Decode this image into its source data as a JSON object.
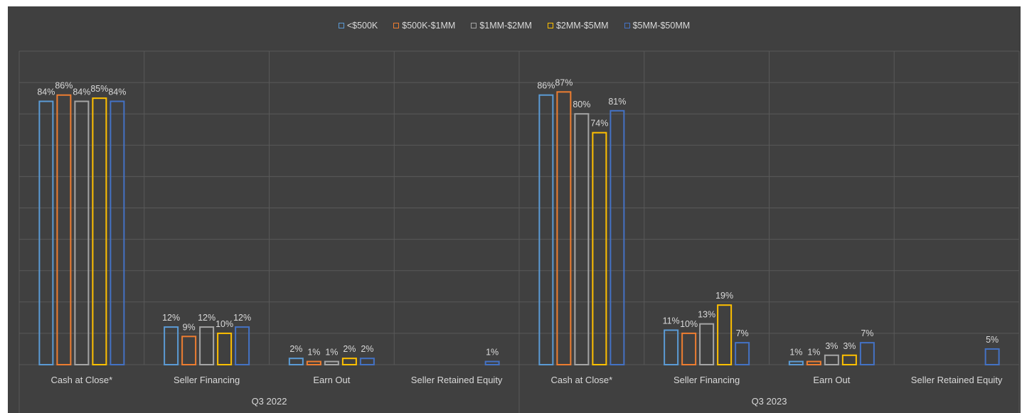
{
  "chart_data": {
    "type": "bar",
    "title": "",
    "xlabel": "",
    "ylabel": "",
    "ylim": [
      0,
      1.0
    ],
    "grid": true,
    "legend_position": "top",
    "groups": [
      {
        "name": "Q3 2022",
        "categories": [
          "Cash at Close*",
          "Seller Financing",
          "Earn Out",
          "Seller Retained Equity"
        ]
      },
      {
        "name": "Q3 2023",
        "categories": [
          "Cash at Close*",
          "Seller Financing",
          "Earn Out",
          "Seller Retained Equity"
        ]
      }
    ],
    "series": [
      {
        "name": "<$500K",
        "color": "#5B9BD5",
        "values": [
          0.84,
          0.12,
          0.02,
          null,
          0.86,
          0.11,
          0.01,
          null
        ],
        "labels": [
          "84%",
          "12%",
          "2%",
          "",
          "86%",
          "11%",
          "1%",
          ""
        ]
      },
      {
        "name": "$500K-$1MM",
        "color": "#ED7D31",
        "values": [
          0.86,
          0.09,
          0.01,
          null,
          0.87,
          0.1,
          0.01,
          null
        ],
        "labels": [
          "86%",
          "9%",
          "1%",
          "",
          "87%",
          "10%",
          "1%",
          ""
        ]
      },
      {
        "name": "$1MM-$2MM",
        "color": "#A5A5A5",
        "values": [
          0.84,
          0.12,
          0.01,
          null,
          0.8,
          0.13,
          0.03,
          null
        ],
        "labels": [
          "84%",
          "12%",
          "1%",
          "",
          "80%",
          "13%",
          "3%",
          ""
        ]
      },
      {
        "name": "$2MM-$5MM",
        "color": "#FFC000",
        "values": [
          0.85,
          0.1,
          0.02,
          null,
          0.74,
          0.19,
          0.03,
          null
        ],
        "labels": [
          "85%",
          "10%",
          "2%",
          "",
          "74%",
          "19%",
          "3%",
          ""
        ]
      },
      {
        "name": "$5MM-$50MM",
        "color": "#4472C4",
        "values": [
          0.84,
          0.12,
          0.02,
          0.01,
          0.81,
          0.07,
          0.07,
          0.05
        ],
        "labels": [
          "84%",
          "12%",
          "2%",
          "1%",
          "81%",
          "7%",
          "7%",
          "5%"
        ]
      }
    ]
  },
  "style": {
    "background": "#404040",
    "grid_color": "#595959",
    "text_color": "#d9d9d9"
  }
}
